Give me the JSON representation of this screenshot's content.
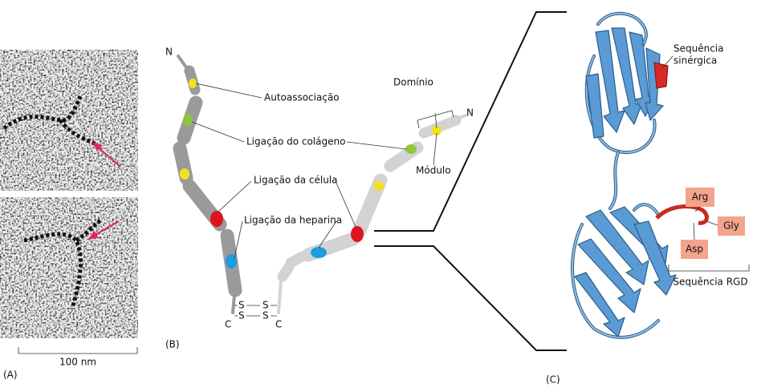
{
  "panels": {
    "a": {
      "label": "(A)",
      "scale_bar": "100 nm"
    },
    "b": {
      "label": "(B)",
      "terminals": {
        "n_left": "N",
        "n_right": "N",
        "c_left": "C",
        "c_right": "C"
      },
      "disulfide": [
        "S",
        "S",
        "S",
        "S"
      ],
      "annotations": {
        "self_association": "Autoassociação",
        "collagen": "Ligação do colágeno",
        "cell": "Ligação da célula",
        "heparin": "Ligação da heparina",
        "domain": "Domínio",
        "module": "Módulo"
      }
    },
    "c": {
      "label": "(C)",
      "synergy": [
        "Sequência",
        "sinérgica"
      ],
      "residues": [
        "Arg",
        "Gly",
        "Asp"
      ],
      "rgd": "Sequência RGD"
    }
  }
}
